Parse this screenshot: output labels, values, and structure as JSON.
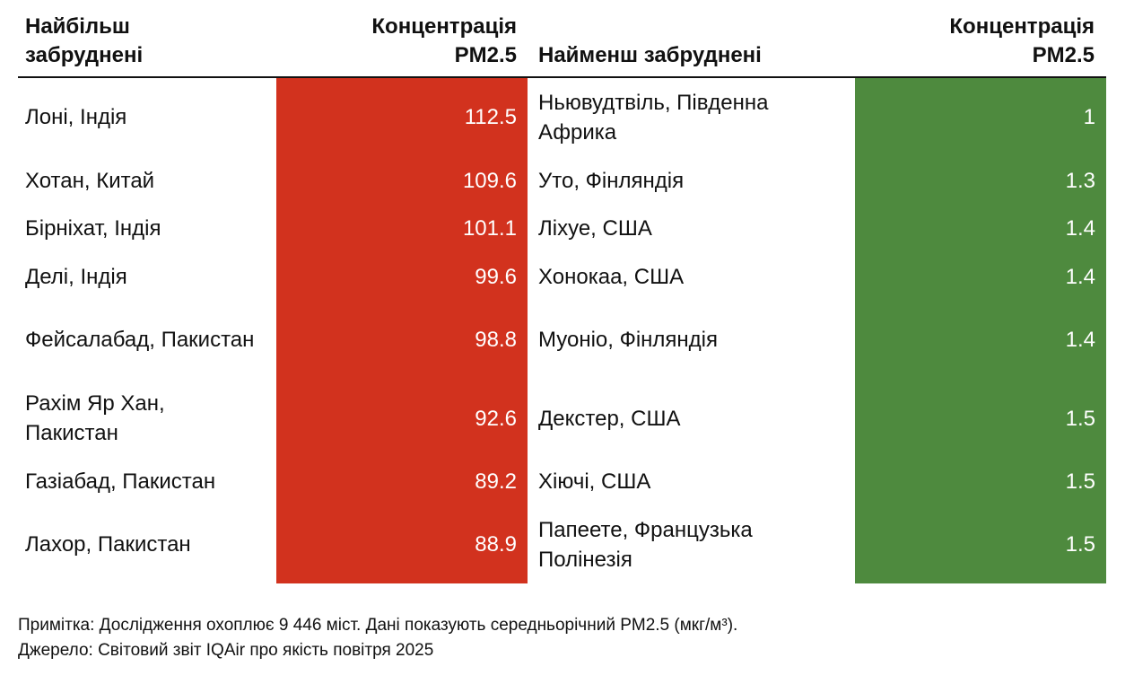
{
  "table": {
    "headers": [
      "Найбільш забруднені",
      "Концентрація PM2.5",
      "Найменш забруднені",
      "Концентрація PM2.5"
    ],
    "rows": [
      [
        "Лоні, Індія",
        112.5,
        "Ньювудтвіль, Південна Африка",
        1
      ],
      [
        "Хотан, Китай",
        109.6,
        "Уто, Фінляндія",
        1.3
      ],
      [
        "Бірніхат, Індія",
        101.1,
        "Ліхуе, США",
        1.4
      ],
      [
        "Делі, Індія",
        99.6,
        "Хонокаа, США",
        1.4
      ],
      [
        "Фейсалабад, Пакистан",
        98.8,
        "Муоніо, Фінляндія",
        1.4
      ],
      [
        "Рахім Яр Хан, Пакистан",
        92.6,
        "Декстер, США",
        1.5
      ],
      [
        "Газіабад, Пакистан",
        89.2,
        "Хіючі, США",
        1.5
      ],
      [
        "Лахор, Пакистан",
        88.9,
        "Папеете, Французька Полінезія",
        1.5
      ]
    ]
  },
  "footer": {
    "note": "Примітка: Дослідження охоплює 9 446 міст. Дані показують середньорічний PM2.5 (мкг/м³).",
    "source": "Джерело: Світовий звіт IQAir про якість повітря 2025"
  }
}
